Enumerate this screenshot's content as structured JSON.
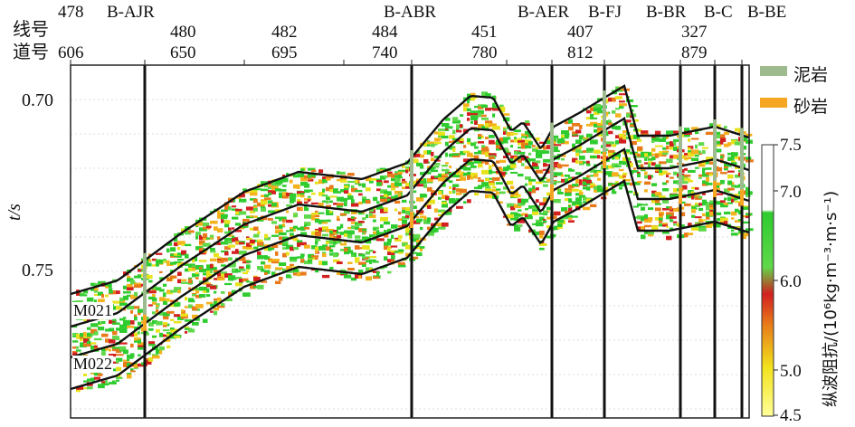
{
  "header": {
    "line_label": "线号",
    "trace_label": "道号",
    "line_numbers": [
      "478",
      "480",
      "482",
      "484",
      "451",
      "407",
      "327"
    ],
    "trace_numbers": [
      "606",
      "650",
      "695",
      "740",
      "780",
      "812",
      "879"
    ]
  },
  "wells": [
    "B-AJR",
    "B-ABR",
    "B-AER",
    "B-FJ",
    "B-BR",
    "B-C",
    "B-BE"
  ],
  "axis": {
    "ylabel": "t/s",
    "ticks": [
      "0.70",
      "0.75"
    ]
  },
  "horizons": [
    "M021",
    "M022"
  ],
  "legend": [
    {
      "label": "泥岩",
      "color": "#9dbb8e"
    },
    {
      "label": "砂岩",
      "color": "#f5a623"
    }
  ],
  "colorbar": {
    "title": "纵波阻抗/(10⁶kg·m⁻³·m·s⁻¹)",
    "ticks": [
      "7.5",
      "7.0",
      "6.0",
      "5.0",
      "4.5"
    ]
  }
}
